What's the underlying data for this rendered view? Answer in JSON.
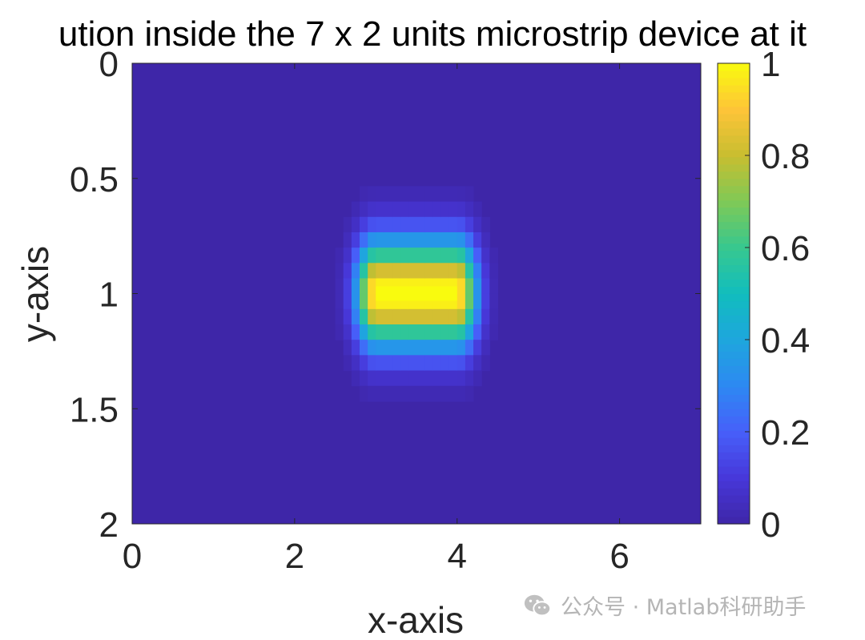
{
  "chart_data": {
    "type": "heatmap",
    "title": "ution inside the 7 x 2 units microstrip device at it",
    "xlabel": "x-axis",
    "ylabel": "y-axis",
    "xlim": [
      0,
      7
    ],
    "ylim": [
      0,
      2
    ],
    "y_direction": "reversed",
    "xticks": [
      0,
      2,
      4,
      6
    ],
    "yticks": [
      0,
      0.5,
      1,
      1.5,
      2
    ],
    "grid_resolution": {
      "dx": 0.1,
      "dy": 0.0667
    },
    "colormap": "parula",
    "colorbar": {
      "range": [
        0,
        1
      ],
      "ticks": [
        0,
        0.2,
        0.4,
        0.6,
        0.8,
        1
      ],
      "position": "right"
    },
    "conductor": {
      "x_range": [
        3,
        4
      ],
      "y": 1,
      "value": 1
    },
    "field_description": "potential peaks at 1 on the strip at y=1 between x=3 and x=4 and decays to 0 away from it",
    "decay": {
      "sigma_x": 0.17,
      "sigma_y": 0.16
    },
    "background_value": 0
  },
  "watermark": {
    "icon": "wechat-icon",
    "text": "公众号 · Matlab科研助手"
  }
}
